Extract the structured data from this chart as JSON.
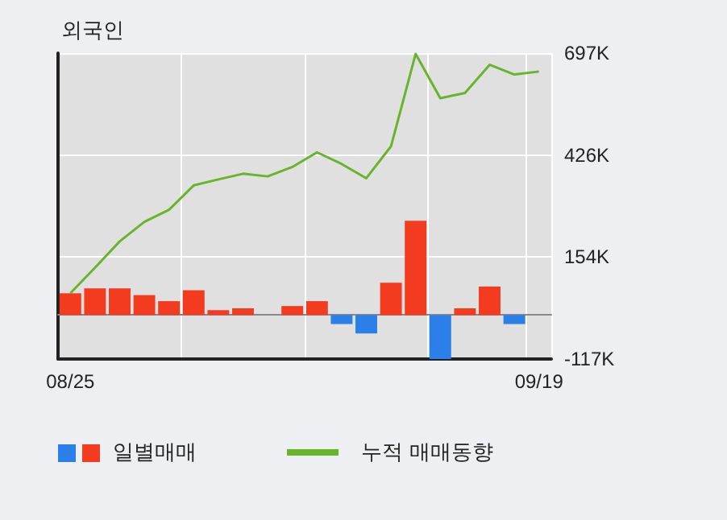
{
  "chart_data": {
    "type": "bar",
    "title": "외국인",
    "categories": [
      "08/25",
      null,
      null,
      null,
      null,
      null,
      null,
      null,
      null,
      null,
      null,
      null,
      null,
      null,
      null,
      null,
      null,
      null,
      null,
      "09/19"
    ],
    "series": [
      {
        "name": "일별매매",
        "values": [
          58000,
          71000,
          71000,
          53000,
          37000,
          66000,
          13000,
          18000,
          0,
          24000,
          37000,
          -24000,
          -49000,
          86000,
          251000,
          -117000,
          18000,
          76000,
          -24000,
          0
        ],
        "colors": [
          "#f23b1f",
          "#f23b1f",
          "#f23b1f",
          "#f23b1f",
          "#f23b1f",
          "#f23b1f",
          "#f23b1f",
          "#f23b1f",
          "#f23b1f",
          "#f23b1f",
          "#f23b1f",
          "#2a7fe8",
          "#2a7fe8",
          "#f23b1f",
          "#f23b1f",
          "#2a7fe8",
          "#f23b1f",
          "#f23b1f",
          "#2a7fe8",
          "#f23b1f"
        ]
      },
      {
        "type": "line",
        "name": "누적 매매동향",
        "color": "#6ab42c",
        "values": [
          58000,
          126000,
          196000,
          248000,
          280000,
          345000,
          361000,
          376000,
          369000,
          394000,
          433000,
          402000,
          364000,
          449000,
          695000,
          577000,
          591000,
          666000,
          640000,
          648000
        ]
      }
    ],
    "ylim": [
      -117000,
      697000
    ],
    "yticks": [
      {
        "value": -117000,
        "label": "-117K"
      },
      {
        "value": 154000,
        "label": "154K"
      },
      {
        "value": 426000,
        "label": "426K"
      },
      {
        "value": 697000,
        "label": "697K"
      }
    ],
    "grid": true,
    "legend": "bottom",
    "marker": "none"
  }
}
